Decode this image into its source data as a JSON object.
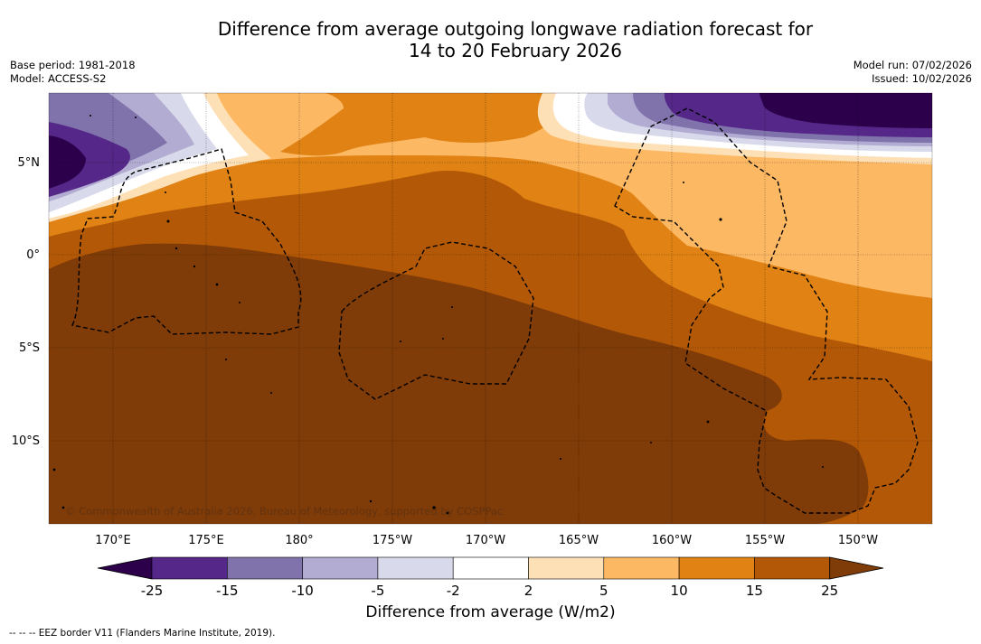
{
  "title": {
    "line1": "Difference from average outgoing longwave radiation forecast for",
    "line2": "14 to 20 February 2026"
  },
  "meta": {
    "base_period": "Base period: 1981-2018",
    "model": "Model: ACCESS-S2",
    "model_run": "Model run: 07/02/2026",
    "issued": "Issued: 10/02/2026"
  },
  "map": {
    "lat_labels": [
      "5°N",
      "0°",
      "5°S",
      "10°S"
    ],
    "lon_labels": [
      "170°E",
      "175°E",
      "180°",
      "175°W",
      "170°W",
      "165°W",
      "160°W",
      "155°W",
      "150°W"
    ],
    "copyright": "© Commonwealth of Australia 2026, Bureau of Meteorology, supported by COSPPac"
  },
  "colorbar": {
    "ticks": [
      "-25",
      "-15",
      "-10",
      "-5",
      "-2",
      "2",
      "5",
      "10",
      "15",
      "25"
    ],
    "colors": [
      "#2d004b",
      "#542788",
      "#8073ac",
      "#b2abd2",
      "#d8daeb",
      "#ffffff",
      "#fee0b6",
      "#fdb863",
      "#e08214",
      "#b35806",
      "#7f3b08"
    ],
    "label": "Difference from average (W/m2)"
  },
  "footnote": "--  --  -- EEZ border V11 (Flanders Marine Institute, 2019)."
}
